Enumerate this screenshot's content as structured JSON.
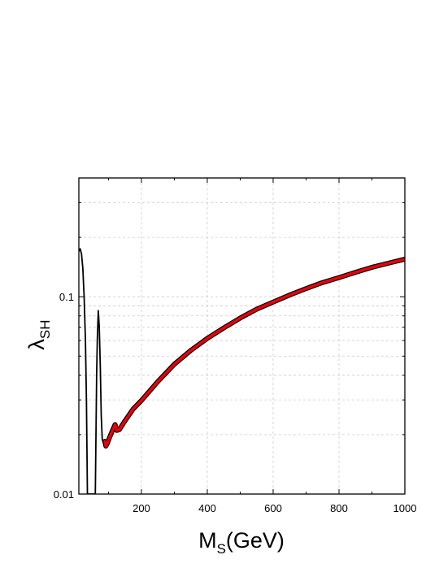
{
  "chart_data": {
    "type": "line",
    "xlabel": {
      "main": "M",
      "sub": "S",
      "suffix": "(GeV)"
    },
    "ylabel": {
      "main": "λ",
      "sub": "SH"
    },
    "xlim": [
      10,
      1000
    ],
    "ylim": [
      0.01,
      0.4
    ],
    "yscale": "log",
    "grid": true,
    "x_ticks": [
      200,
      400,
      600,
      800,
      1000
    ],
    "x_tick_labels": [
      "200",
      "400",
      "600",
      "800",
      "1000"
    ],
    "y_ticks": [
      0.01,
      0.1
    ],
    "y_tick_labels": [
      "0.01",
      "0.1"
    ],
    "series": [
      {
        "color": "#000000",
        "points": [
          [
            10,
            0.17
          ],
          [
            14,
            0.175
          ],
          [
            18,
            0.165
          ],
          [
            22,
            0.14
          ],
          [
            26,
            0.1
          ],
          [
            30,
            0.06
          ],
          [
            33,
            0.03
          ],
          [
            36,
            0.01
          ],
          [
            60,
            0.01
          ],
          [
            62,
            0.02
          ],
          [
            64,
            0.04
          ],
          [
            66,
            0.06
          ],
          [
            69,
            0.085
          ],
          [
            72,
            0.07
          ],
          [
            75,
            0.045
          ],
          [
            78,
            0.025
          ],
          [
            81,
            0.019
          ],
          [
            85,
            0.018
          ],
          [
            89,
            0.019
          ]
        ]
      },
      {
        "color": "#e8000b",
        "points": [
          [
            89,
            0.0185
          ],
          [
            92,
            0.0175
          ],
          [
            96,
            0.018
          ],
          [
            104,
            0.0195
          ],
          [
            112,
            0.021
          ],
          [
            120,
            0.0225
          ],
          [
            125,
            0.021
          ],
          [
            133,
            0.0212
          ],
          [
            150,
            0.0235
          ],
          [
            175,
            0.027
          ],
          [
            200,
            0.0298
          ],
          [
            250,
            0.0372
          ],
          [
            300,
            0.0455
          ],
          [
            350,
            0.0535
          ],
          [
            400,
            0.0615
          ],
          [
            450,
            0.0695
          ],
          [
            500,
            0.078
          ],
          [
            550,
            0.0865
          ],
          [
            600,
            0.094
          ],
          [
            650,
            0.102
          ],
          [
            700,
            0.11
          ],
          [
            750,
            0.118
          ],
          [
            800,
            0.125
          ],
          [
            850,
            0.133
          ],
          [
            900,
            0.141
          ],
          [
            950,
            0.148
          ],
          [
            1000,
            0.155
          ]
        ]
      }
    ]
  }
}
